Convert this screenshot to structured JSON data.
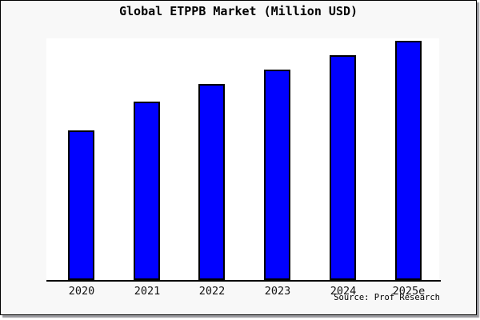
{
  "title": "Global ETPPB Market (Million USD)",
  "source": "Source: Prof Research",
  "chart_data": {
    "type": "bar",
    "title": "Global ETPPB Market (Million USD)",
    "categories": [
      "2020",
      "2021",
      "2022",
      "2023",
      "2024",
      "2025e"
    ],
    "values": [
      62,
      74,
      81,
      87,
      93,
      99
    ],
    "value_note": "relative bar heights in % of plot height; chart shows no y-axis tick labels",
    "xlabel": "",
    "ylabel": "",
    "ylim": [
      0,
      100
    ],
    "grid": false,
    "legend": false,
    "source": "Source: Prof Research",
    "colors": {
      "bar_fill": "#0101FF",
      "bar_border": "#000000",
      "plot_bg": "#FFFFFF",
      "page_bg": "#F8F8F8",
      "axis": "#000000",
      "title_text": "#000000"
    }
  }
}
